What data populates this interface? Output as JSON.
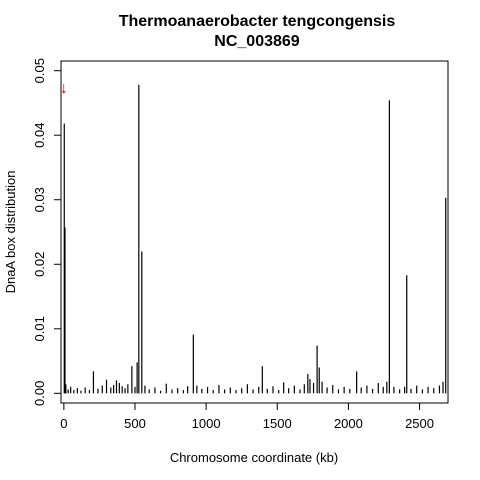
{
  "chart_data": {
    "type": "bar",
    "title": "Thermoanaerobacter tengcongensis",
    "subtitle": "NC_003869",
    "xlabel": "Chromosome coordinate (kb)",
    "ylabel": "DnaA box distribution",
    "xlim": [
      -20,
      2700
    ],
    "ylim": [
      -0.0015,
      0.0515
    ],
    "xticks": [
      0,
      500,
      1000,
      1500,
      2000,
      2500
    ],
    "yticks": [
      0.0,
      0.01,
      0.02,
      0.03,
      0.04,
      0.05
    ],
    "ytick_labels": [
      "0.00",
      "0.01",
      "0.02",
      "0.03",
      "0.04",
      "0.05"
    ],
    "marker": {
      "symbol": "↓",
      "x": 0,
      "y": 0.0475,
      "color": "#cc0000"
    },
    "bar_color": "#000000",
    "bars": [
      {
        "x": 3,
        "y": 0.0418
      },
      {
        "x": 8,
        "y": 0.0257
      },
      {
        "x": 14,
        "y": 0.0014
      },
      {
        "x": 30,
        "y": 0.0006
      },
      {
        "x": 48,
        "y": 0.001
      },
      {
        "x": 70,
        "y": 0.0005
      },
      {
        "x": 95,
        "y": 0.0008
      },
      {
        "x": 120,
        "y": 0.0004
      },
      {
        "x": 150,
        "y": 0.0009
      },
      {
        "x": 180,
        "y": 0.0005
      },
      {
        "x": 208,
        "y": 0.0034
      },
      {
        "x": 240,
        "y": 0.0007
      },
      {
        "x": 270,
        "y": 0.0012
      },
      {
        "x": 300,
        "y": 0.0021
      },
      {
        "x": 330,
        "y": 0.0009
      },
      {
        "x": 350,
        "y": 0.0013
      },
      {
        "x": 370,
        "y": 0.002
      },
      {
        "x": 390,
        "y": 0.0016
      },
      {
        "x": 410,
        "y": 0.0011
      },
      {
        "x": 430,
        "y": 0.0008
      },
      {
        "x": 450,
        "y": 0.0014
      },
      {
        "x": 478,
        "y": 0.0042
      },
      {
        "x": 500,
        "y": 0.001
      },
      {
        "x": 515,
        "y": 0.0048
      },
      {
        "x": 527,
        "y": 0.0478
      },
      {
        "x": 548,
        "y": 0.022
      },
      {
        "x": 570,
        "y": 0.0012
      },
      {
        "x": 600,
        "y": 0.0006
      },
      {
        "x": 640,
        "y": 0.0009
      },
      {
        "x": 680,
        "y": 0.0004
      },
      {
        "x": 720,
        "y": 0.0015
      },
      {
        "x": 760,
        "y": 0.0006
      },
      {
        "x": 800,
        "y": 0.0008
      },
      {
        "x": 840,
        "y": 0.0005
      },
      {
        "x": 870,
        "y": 0.0011
      },
      {
        "x": 910,
        "y": 0.0091
      },
      {
        "x": 935,
        "y": 0.0012
      },
      {
        "x": 970,
        "y": 0.0007
      },
      {
        "x": 1010,
        "y": 0.001
      },
      {
        "x": 1050,
        "y": 0.0005
      },
      {
        "x": 1090,
        "y": 0.0013
      },
      {
        "x": 1130,
        "y": 0.0006
      },
      {
        "x": 1170,
        "y": 0.0009
      },
      {
        "x": 1210,
        "y": 0.0005
      },
      {
        "x": 1250,
        "y": 0.0008
      },
      {
        "x": 1290,
        "y": 0.0014
      },
      {
        "x": 1330,
        "y": 0.0006
      },
      {
        "x": 1370,
        "y": 0.001
      },
      {
        "x": 1395,
        "y": 0.0042
      },
      {
        "x": 1430,
        "y": 0.0007
      },
      {
        "x": 1470,
        "y": 0.0011
      },
      {
        "x": 1510,
        "y": 0.0005
      },
      {
        "x": 1545,
        "y": 0.0017
      },
      {
        "x": 1580,
        "y": 0.0008
      },
      {
        "x": 1620,
        "y": 0.0012
      },
      {
        "x": 1660,
        "y": 0.0006
      },
      {
        "x": 1690,
        "y": 0.0014
      },
      {
        "x": 1715,
        "y": 0.003
      },
      {
        "x": 1730,
        "y": 0.0022
      },
      {
        "x": 1755,
        "y": 0.0016
      },
      {
        "x": 1780,
        "y": 0.0074
      },
      {
        "x": 1795,
        "y": 0.004
      },
      {
        "x": 1815,
        "y": 0.0018
      },
      {
        "x": 1850,
        "y": 0.0009
      },
      {
        "x": 1890,
        "y": 0.0013
      },
      {
        "x": 1930,
        "y": 0.0006
      },
      {
        "x": 1970,
        "y": 0.001
      },
      {
        "x": 2010,
        "y": 0.0007
      },
      {
        "x": 2058,
        "y": 0.0034
      },
      {
        "x": 2090,
        "y": 0.0009
      },
      {
        "x": 2130,
        "y": 0.0012
      },
      {
        "x": 2170,
        "y": 0.0007
      },
      {
        "x": 2210,
        "y": 0.0016
      },
      {
        "x": 2245,
        "y": 0.001
      },
      {
        "x": 2270,
        "y": 0.0018
      },
      {
        "x": 2288,
        "y": 0.0454
      },
      {
        "x": 2320,
        "y": 0.001
      },
      {
        "x": 2360,
        "y": 0.0006
      },
      {
        "x": 2395,
        "y": 0.001
      },
      {
        "x": 2410,
        "y": 0.0183
      },
      {
        "x": 2440,
        "y": 0.0007
      },
      {
        "x": 2480,
        "y": 0.0012
      },
      {
        "x": 2520,
        "y": 0.0006
      },
      {
        "x": 2560,
        "y": 0.001
      },
      {
        "x": 2600,
        "y": 0.0008
      },
      {
        "x": 2640,
        "y": 0.0012
      },
      {
        "x": 2665,
        "y": 0.0018
      },
      {
        "x": 2684,
        "y": 0.0303
      }
    ]
  }
}
